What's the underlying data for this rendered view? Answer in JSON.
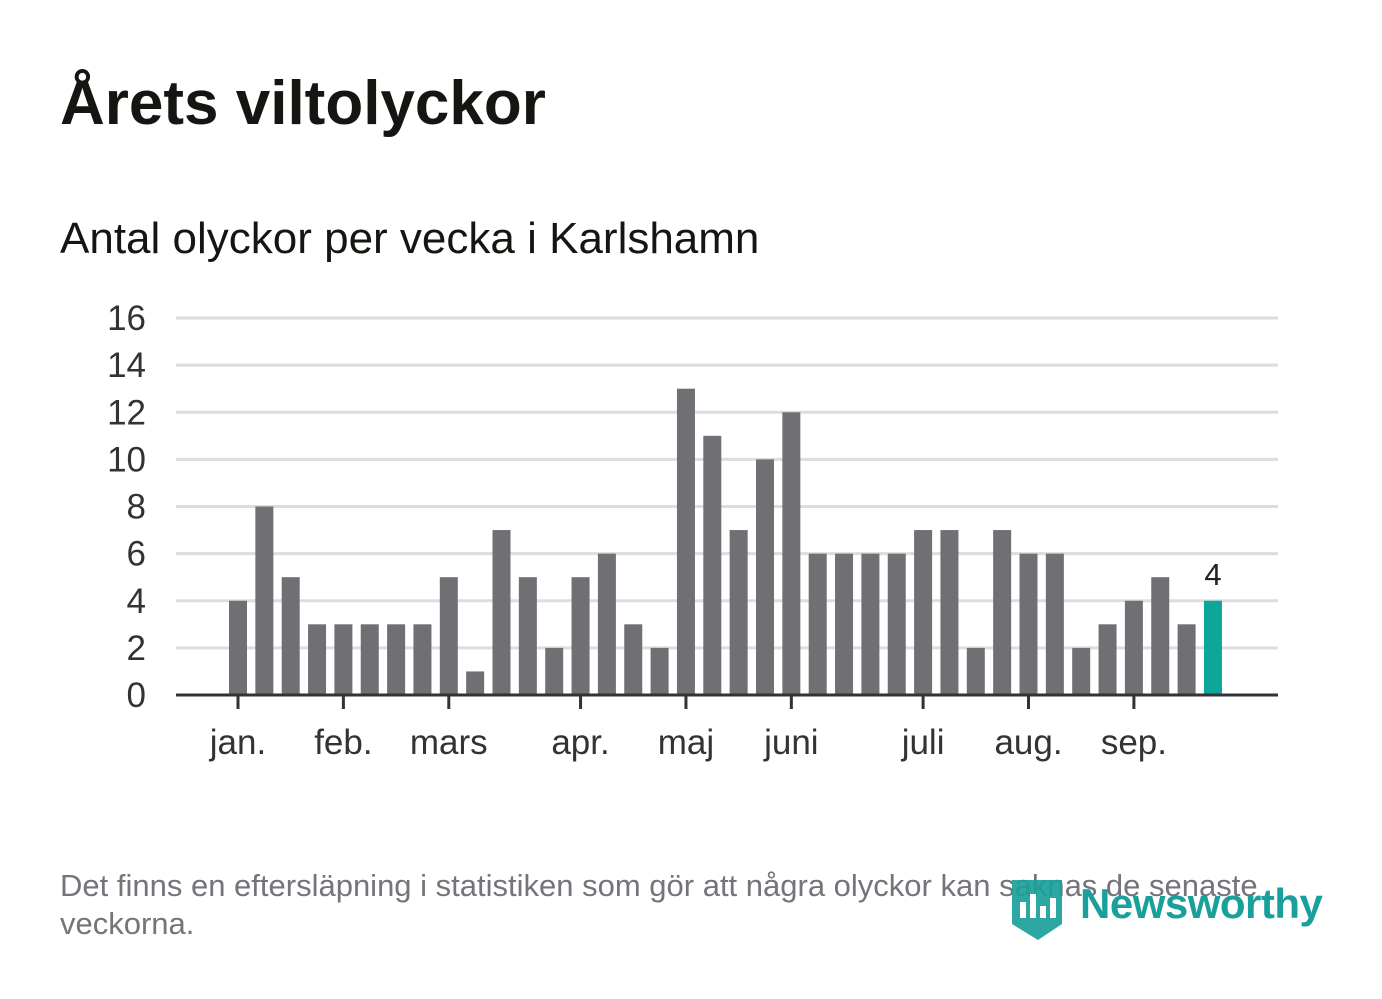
{
  "title": "Årets viltolyckor",
  "subtitle": "Antal olyckor per vecka i Karlshamn",
  "footnote": "Det finns en eftersläpning i statistiken som gör att några olyckor kan saknas de senaste veckorna.",
  "logo": {
    "text": "Newsworthy",
    "icon": "newsworthy-logo-icon",
    "color": "#1aa09a"
  },
  "colors": {
    "bar": "#6f6f74",
    "highlight": "#0ea59a",
    "grid": "#dddddd",
    "axis": "#333333",
    "text": "#333333"
  },
  "chart_data": {
    "type": "bar",
    "title": "Antal olyckor per vecka i Karlshamn",
    "xlabel": "",
    "ylabel": "",
    "ylim": [
      0,
      16
    ],
    "yticks": [
      0,
      2,
      4,
      6,
      8,
      10,
      12,
      14,
      16
    ],
    "grid": true,
    "weeks": [
      1,
      2,
      3,
      4,
      5,
      6,
      7,
      8,
      9,
      10,
      11,
      12,
      13,
      14,
      15,
      16,
      17,
      18,
      19,
      20,
      21,
      22,
      23,
      24,
      25,
      26,
      27,
      28,
      29,
      30,
      31,
      32,
      33,
      34,
      35,
      36,
      37,
      38
    ],
    "values": [
      4,
      8,
      5,
      3,
      3,
      3,
      3,
      3,
      5,
      1,
      7,
      5,
      2,
      5,
      6,
      3,
      2,
      13,
      11,
      7,
      10,
      12,
      6,
      6,
      6,
      6,
      7,
      7,
      2,
      7,
      6,
      6,
      2,
      3,
      4,
      5,
      3,
      4
    ],
    "highlight_index": 37,
    "highlight_label": "4",
    "month_ticks": [
      {
        "label": "jan.",
        "week": 1
      },
      {
        "label": "feb.",
        "week": 5
      },
      {
        "label": "mars",
        "week": 9
      },
      {
        "label": "apr.",
        "week": 14
      },
      {
        "label": "maj",
        "week": 18
      },
      {
        "label": "juni",
        "week": 22
      },
      {
        "label": "juli",
        "week": 27
      },
      {
        "label": "aug.",
        "week": 31
      },
      {
        "label": "sep.",
        "week": 35
      }
    ]
  }
}
